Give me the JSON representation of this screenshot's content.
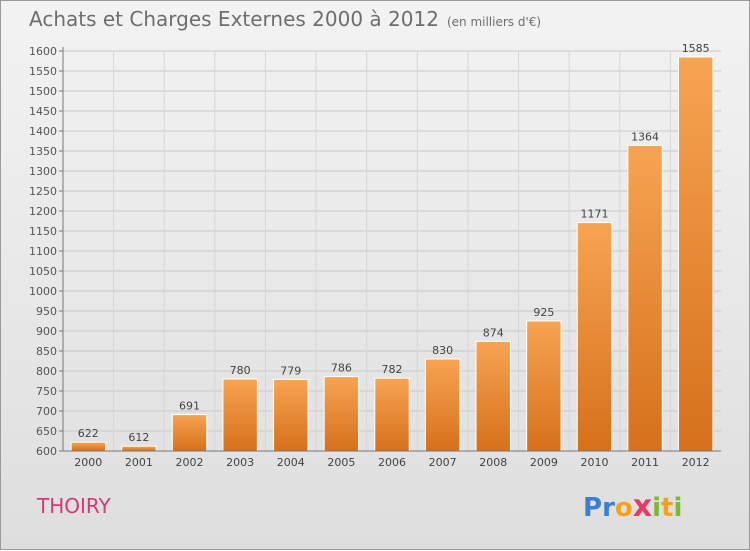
{
  "title": "Achats et Charges Externes 2000 à 2012",
  "subtitle": "(en milliers d'€)",
  "commune": "THOIRY",
  "logo": {
    "letters": [
      "P",
      "r",
      "o",
      "x",
      "i",
      "t",
      "i"
    ],
    "colors": [
      "#3a7fd0",
      "#3a7fd0",
      "#f5a21b",
      "#e83a6a",
      "#7ab930",
      "#f5a21b",
      "#7ab930"
    ]
  },
  "colors": {
    "bar_top": "#f7a452",
    "bar_bottom": "#d6701c",
    "title": "#6e6e6e",
    "commune": "#d43a7a"
  },
  "chart_data": {
    "type": "bar",
    "categories": [
      "2000",
      "2001",
      "2002",
      "2003",
      "2004",
      "2005",
      "2006",
      "2007",
      "2008",
      "2009",
      "2010",
      "2011",
      "2012"
    ],
    "values": [
      622,
      612,
      691,
      780,
      779,
      786,
      782,
      830,
      874,
      925,
      1171,
      1364,
      1585
    ],
    "ylim": [
      600,
      1600
    ],
    "yticks": [
      600,
      650,
      700,
      750,
      800,
      850,
      900,
      950,
      1000,
      1050,
      1100,
      1150,
      1200,
      1250,
      1300,
      1350,
      1400,
      1450,
      1500,
      1550,
      1600
    ],
    "grid": true
  }
}
